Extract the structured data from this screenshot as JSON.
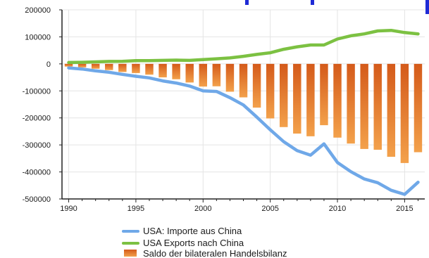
{
  "chart_data": {
    "type": "bar",
    "xlim": [
      1989.5,
      2016.5
    ],
    "ylim": [
      -500000,
      200000
    ],
    "x_ticks": [
      1990,
      1995,
      2000,
      2005,
      2010,
      2015
    ],
    "y_ticks": [
      200000,
      100000,
      0,
      -100000,
      -200000,
      -300000,
      -400000,
      -500000
    ],
    "y_tick_labels": [
      "200000",
      "100000",
      "0",
      "-100000",
      "-200000",
      "-300000",
      "-400000",
      "-500000"
    ],
    "grid": true,
    "legend_position": "bottom-center",
    "years": [
      1990,
      1991,
      1992,
      1993,
      1994,
      1995,
      1996,
      1997,
      1998,
      1999,
      2000,
      2001,
      2002,
      2003,
      2004,
      2005,
      2006,
      2007,
      2008,
      2009,
      2010,
      2011,
      2012,
      2013,
      2014,
      2015,
      2016
    ],
    "series": [
      {
        "name": "USA: Importe aus China",
        "type": "line",
        "color": "#6fa8e8",
        "values": [
          -15000,
          -19000,
          -26000,
          -31000,
          -39000,
          -46000,
          -52000,
          -63000,
          -71000,
          -82000,
          -100000,
          -102000,
          -125000,
          -152000,
          -197000,
          -244000,
          -288000,
          -321000,
          -338000,
          -296000,
          -365000,
          -399000,
          -426000,
          -440000,
          -468000,
          -483000,
          -438000
        ]
      },
      {
        "name": "USA Exports nach  China",
        "type": "line",
        "color": "#7cc142",
        "values": [
          5000,
          6000,
          7500,
          9000,
          9500,
          12000,
          12000,
          13000,
          14000,
          13000,
          16000,
          19000,
          22000,
          28000,
          35000,
          41000,
          54000,
          63000,
          70000,
          70000,
          92000,
          104000,
          111000,
          122000,
          124000,
          116000,
          111000
        ]
      },
      {
        "name": "Saldo der bilateralen Handelsbilanz",
        "type": "bar",
        "color": "#e0701e",
        "values": [
          -10000,
          -13000,
          -18000,
          -23000,
          -30000,
          -34000,
          -40000,
          -50000,
          -57000,
          -69000,
          -84000,
          -83000,
          -103000,
          -124000,
          -162000,
          -202000,
          -234000,
          -258000,
          -268000,
          -227000,
          -273000,
          -295000,
          -315000,
          -318000,
          -344000,
          -367000,
          -327000
        ]
      }
    ]
  },
  "decor": {
    "cropped_mark_color": "#1f2bd6"
  }
}
